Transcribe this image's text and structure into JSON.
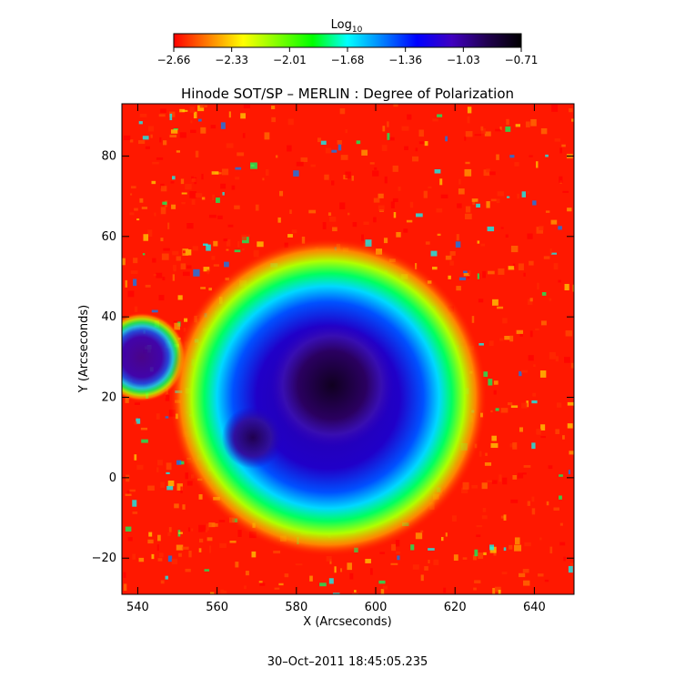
{
  "chart_data": {
    "type": "heatmap",
    "title": "Hinode SOT/SP – MERLIN : Degree of Polarization",
    "xlabel": "X (Arcseconds)",
    "ylabel": "Y (Arcseconds)",
    "xlim": [
      536,
      650
    ],
    "ylim": [
      -29,
      93
    ],
    "x_ticks": [
      540,
      560,
      580,
      600,
      620,
      640
    ],
    "y_ticks": [
      -20,
      0,
      20,
      40,
      60,
      80
    ],
    "colorbar": {
      "label_base": "Log",
      "label_sub": "10",
      "range": [
        -2.66,
        -0.71
      ],
      "ticks": [
        "−2.66",
        "−2.33",
        "−2.01",
        "−1.68",
        "−1.36",
        "−1.03",
        "−0.71"
      ],
      "colors": [
        "#ff0000",
        "#ff7f00",
        "#ffff00",
        "#7fff00",
        "#00ff00",
        "#00ffff",
        "#0080ff",
        "#0000ff",
        "#4000c0",
        "#200050",
        "#000000"
      ]
    },
    "features": [
      {
        "name": "umbra-main",
        "x": 589,
        "y": 23,
        "radius": 12,
        "value": -0.71
      },
      {
        "name": "umbra-west-lobe",
        "x": 569,
        "y": 10,
        "radius": 6,
        "value": -0.85
      },
      {
        "name": "penumbra",
        "x": 588,
        "y": 20,
        "radius": 25,
        "value": -1.2
      },
      {
        "name": "plage-west",
        "x": 541,
        "y": 30,
        "radius": 8,
        "value": -1.1
      }
    ],
    "background_value": -2.6
  },
  "footer": {
    "timestamp": "30–Oct–2011 18:45:05.235"
  }
}
